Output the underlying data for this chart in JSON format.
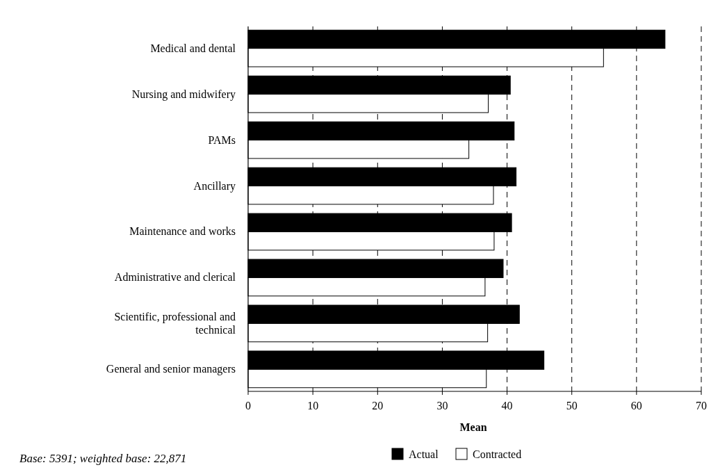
{
  "chart_data": {
    "type": "bar",
    "orientation": "horizontal",
    "xlabel": "Mean",
    "categories": [
      "Medical and dental",
      "Nursing and midwifery",
      "PAMs",
      "Ancillary",
      "Maintenance and works",
      "Administrative and clerical",
      "Scientific, professional and technical",
      "General and senior managers"
    ],
    "series": [
      {
        "name": "Actual",
        "color": "#000000",
        "values": [
          64.4,
          40.5,
          41.1,
          41.4,
          40.7,
          39.4,
          41.9,
          45.7
        ]
      },
      {
        "name": "Contracted",
        "color": "#ffffff",
        "values": [
          54.9,
          37.1,
          34.1,
          37.9,
          38.0,
          36.6,
          37.0,
          36.8
        ]
      }
    ],
    "xlim": [
      0,
      70
    ],
    "xticks": [
      0,
      10,
      20,
      30,
      40,
      50,
      60,
      70
    ],
    "grid": "x",
    "legend": "bottom",
    "annotations": [
      "Base: 5391; weighted base: 22,871"
    ]
  }
}
